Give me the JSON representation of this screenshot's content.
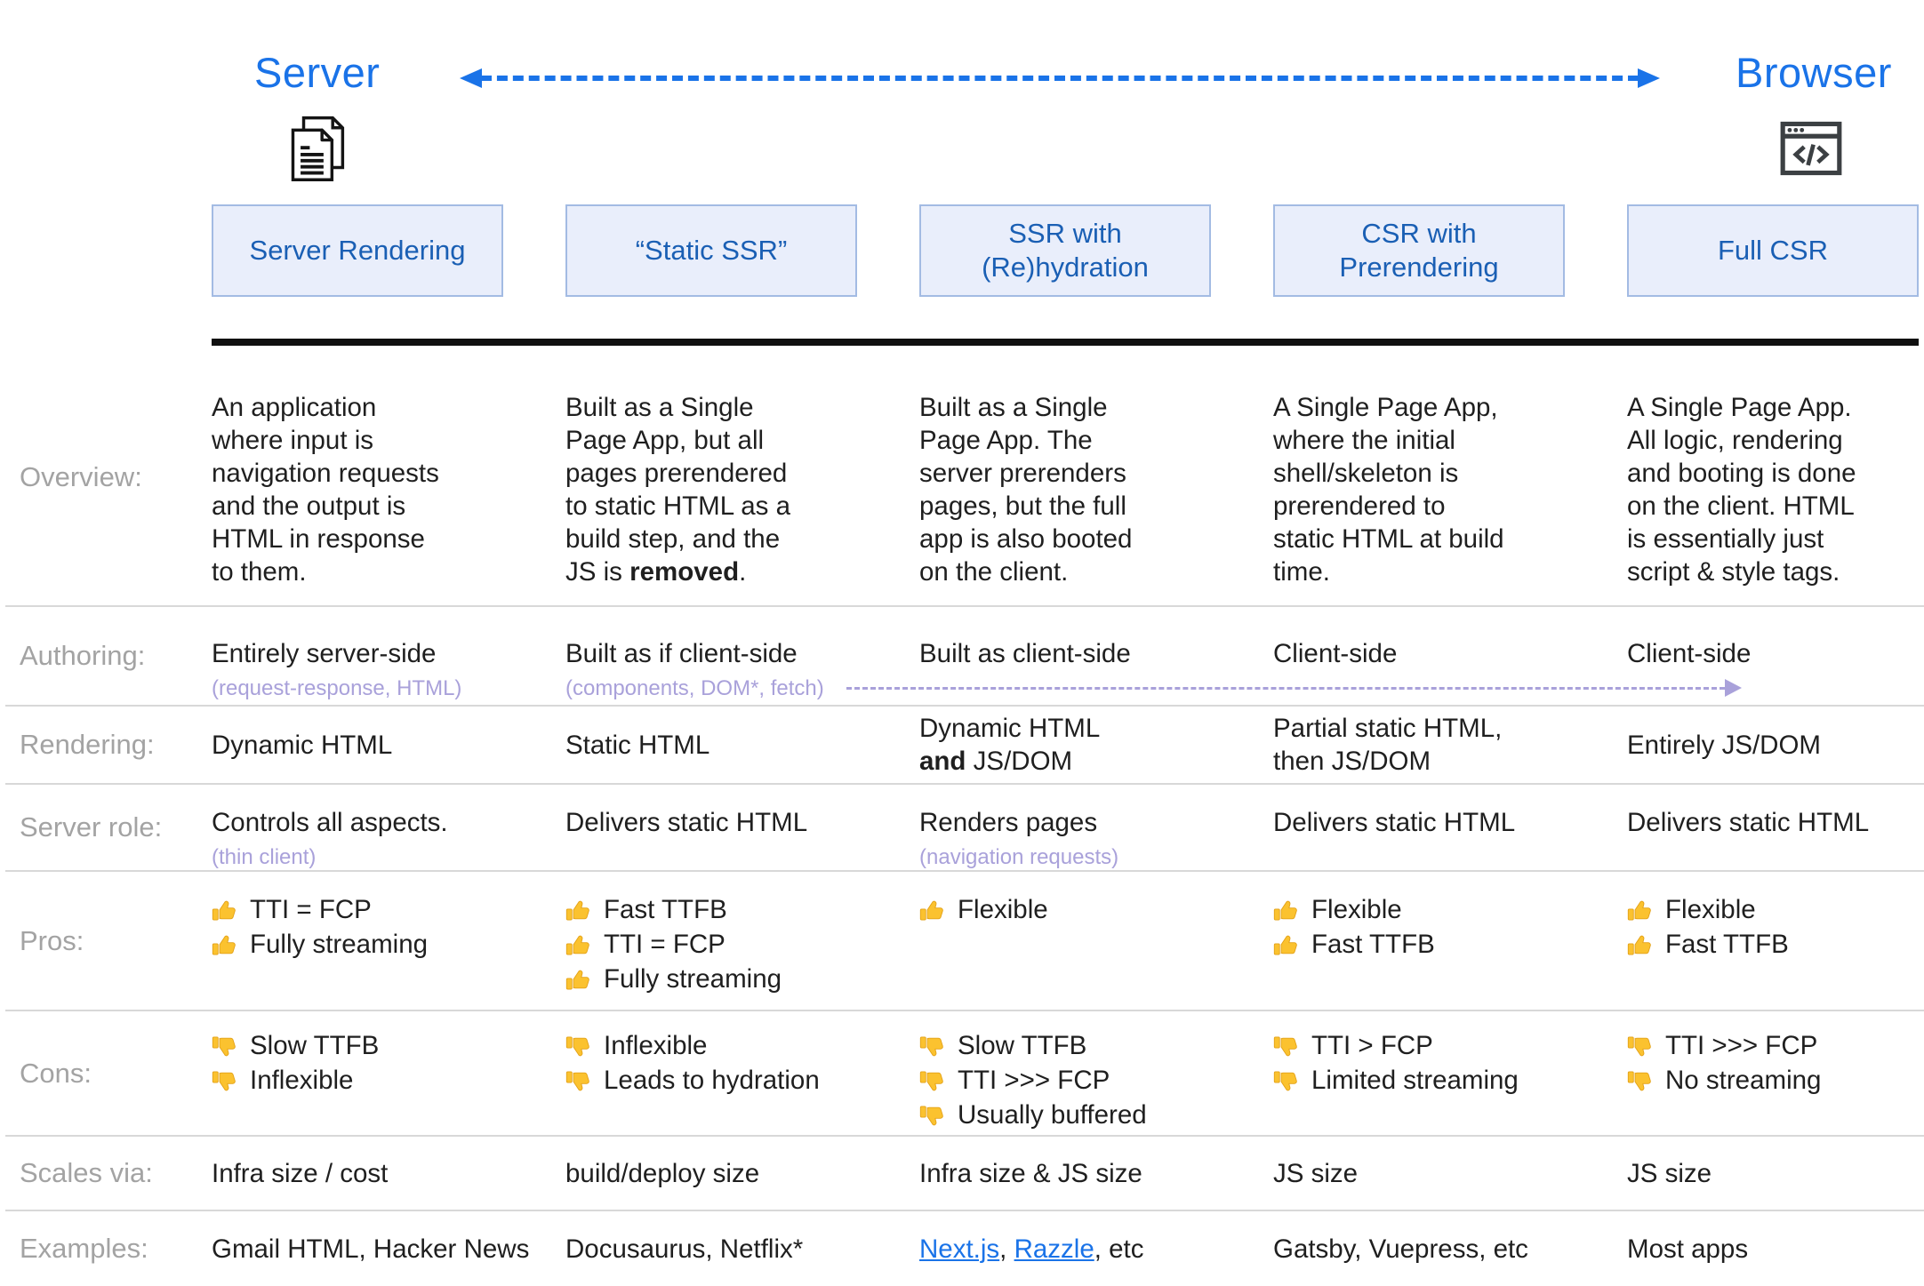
{
  "header": {
    "server_label": "Server",
    "browser_label": "Browser",
    "columns": [
      "Server Rendering",
      "“Static SSR”",
      "SSR with (Re)hydration",
      "CSR with Prerendering",
      "Full CSR"
    ]
  },
  "colors": {
    "accent_blue": "#1a73e8",
    "box_bg": "#e9eefb",
    "box_border": "#a3bbe3",
    "box_text": "#1a5fb4",
    "label_gray": "#a3a3a3",
    "note_purple": "#a9a1da",
    "text_dark": "#1f1f1f",
    "thumb_yellow": "#fbc22f",
    "thumb_outline": "#e3a117",
    "divider": "#d8d8d8",
    "bar_black": "#101010",
    "icon_dark": "#3c4043"
  },
  "icons": {
    "server": "document-pages-icon",
    "browser": "browser-window-code-icon",
    "pro": "thumb-up-icon",
    "con": "thumb-down-icon",
    "spectrum": "dashed-double-arrow-icon",
    "authoring_shift": "dashed-right-arrow-icon"
  },
  "rows": [
    {
      "key": "overview",
      "label": "Overview:",
      "cells": [
        {
          "segments": [
            {
              "t": "An application\nwhere input is\nnavigation requests\nand the output is\nHTML in response\nto them."
            }
          ]
        },
        {
          "segments": [
            {
              "t": "Built as a Single\nPage App, but all\npages prerendered\nto static HTML as a\nbuild step, and the\nJS is "
            },
            {
              "t": "removed",
              "b": true
            },
            {
              "t": "."
            }
          ]
        },
        {
          "segments": [
            {
              "t": "Built as a Single\nPage App. The\nserver prerenders\npages, but the full\napp is also booted\non the client."
            }
          ]
        },
        {
          "segments": [
            {
              "t": "A Single Page App,\nwhere the initial\nshell/skeleton is\nprerendered to\nstatic HTML at build\ntime."
            }
          ]
        },
        {
          "segments": [
            {
              "t": "A Single Page App.\nAll logic, rendering\nand booting is done\non the client. HTML\nis essentially just\nscript & style tags."
            }
          ]
        }
      ]
    },
    {
      "key": "authoring",
      "label": "Authoring:",
      "arrow": true,
      "cells": [
        {
          "segments": [
            {
              "t": "Entirely server-side"
            }
          ],
          "sub": "(request-response, HTML)"
        },
        {
          "segments": [
            {
              "t": "Built as if client-side"
            }
          ],
          "sub": "(components, DOM*, fetch)"
        },
        {
          "segments": [
            {
              "t": "Built as client-side"
            }
          ]
        },
        {
          "segments": [
            {
              "t": "Client-side"
            }
          ]
        },
        {
          "segments": [
            {
              "t": "Client-side"
            }
          ]
        }
      ]
    },
    {
      "key": "rendering",
      "label": "Rendering:",
      "cells": [
        {
          "segments": [
            {
              "t": "Dynamic HTML"
            }
          ]
        },
        {
          "segments": [
            {
              "t": "Static HTML"
            }
          ]
        },
        {
          "segments": [
            {
              "t": "Dynamic HTML\n"
            },
            {
              "t": "and",
              "b": true
            },
            {
              "t": " JS/DOM"
            }
          ]
        },
        {
          "segments": [
            {
              "t": "Partial static HTML,\nthen JS/DOM"
            }
          ]
        },
        {
          "segments": [
            {
              "t": "Entirely JS/DOM"
            }
          ]
        }
      ]
    },
    {
      "key": "server-role",
      "label": "Server role:",
      "cells": [
        {
          "segments": [
            {
              "t": "Controls all aspects."
            }
          ],
          "sub": "(thin client)"
        },
        {
          "segments": [
            {
              "t": "Delivers static HTML"
            }
          ]
        },
        {
          "segments": [
            {
              "t": "Renders pages"
            }
          ],
          "sub": "(navigation requests)"
        },
        {
          "segments": [
            {
              "t": "Delivers static HTML"
            }
          ]
        },
        {
          "segments": [
            {
              "t": "Delivers static HTML"
            }
          ]
        }
      ]
    },
    {
      "key": "pros",
      "label": "Pros:",
      "icon": "thumb-up",
      "cells": [
        {
          "items": [
            "TTI = FCP",
            "Fully streaming"
          ]
        },
        {
          "items": [
            "Fast TTFB",
            "TTI = FCP",
            "Fully streaming"
          ]
        },
        {
          "items": [
            "Flexible"
          ]
        },
        {
          "items": [
            "Flexible",
            "Fast TTFB"
          ]
        },
        {
          "items": [
            "Flexible",
            "Fast TTFB"
          ]
        }
      ]
    },
    {
      "key": "cons",
      "label": "Cons:",
      "icon": "thumb-down",
      "cells": [
        {
          "items": [
            "Slow TTFB",
            "Inflexible"
          ]
        },
        {
          "items": [
            "Inflexible",
            "Leads to hydration"
          ]
        },
        {
          "items": [
            "Slow TTFB",
            "TTI >>> FCP",
            "Usually buffered"
          ]
        },
        {
          "items": [
            "TTI > FCP",
            "Limited streaming"
          ]
        },
        {
          "items": [
            "TTI >>> FCP",
            "No streaming"
          ]
        }
      ]
    },
    {
      "key": "scales",
      "label": "Scales via:",
      "cells": [
        {
          "segments": [
            {
              "t": "Infra size / cost"
            }
          ]
        },
        {
          "segments": [
            {
              "t": "build/deploy size"
            }
          ]
        },
        {
          "segments": [
            {
              "t": "Infra size & JS size"
            }
          ]
        },
        {
          "segments": [
            {
              "t": "JS size"
            }
          ]
        },
        {
          "segments": [
            {
              "t": "JS size"
            }
          ]
        }
      ]
    },
    {
      "key": "examples",
      "label": "Examples:",
      "cells": [
        {
          "segments": [
            {
              "t": "Gmail HTML, Hacker News"
            }
          ]
        },
        {
          "segments": [
            {
              "t": "Docusaurus, Netflix*"
            }
          ]
        },
        {
          "segments": [
            {
              "t": "Next.js",
              "link": true
            },
            {
              "t": ", "
            },
            {
              "t": "Razzle",
              "link": true
            },
            {
              "t": ", etc"
            }
          ]
        },
        {
          "segments": [
            {
              "t": "Gatsby, Vuepress, etc"
            }
          ]
        },
        {
          "segments": [
            {
              "t": "Most apps"
            }
          ]
        }
      ]
    }
  ]
}
